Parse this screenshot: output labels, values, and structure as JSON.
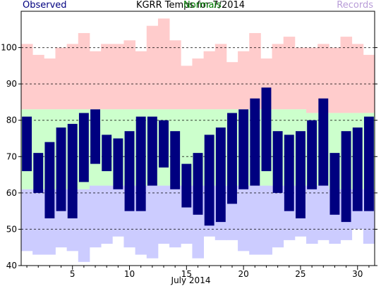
{
  "colors": {
    "observed": "#000080",
    "normals": "#008000",
    "records": "#b89cd8",
    "record_band": "#ffcccc",
    "normal_band": "#ccffcc",
    "low_record_band": "#ccccff",
    "title": "#000000"
  },
  "header": {
    "title": "KGRR Temps for 7/2014",
    "observed_label": "Observed",
    "normals_label": "Normals",
    "records_label": "Records"
  },
  "chart_data": {
    "type": "bar",
    "title": "KGRR Temps for 7/2014",
    "xlabel": "July 2014",
    "ylabel": "",
    "x": [
      1,
      2,
      3,
      4,
      5,
      6,
      7,
      8,
      9,
      10,
      11,
      12,
      13,
      14,
      15,
      16,
      17,
      18,
      19,
      20,
      21,
      22,
      23,
      24,
      25,
      26,
      27,
      28,
      29,
      30,
      31
    ],
    "xlim": [
      0.5,
      31.5
    ],
    "ylim": [
      40,
      110
    ],
    "x_ticks": [
      5,
      10,
      15,
      20,
      25,
      30
    ],
    "y_ticks": [
      40,
      50,
      60,
      70,
      80,
      90,
      100
    ],
    "grid": "dashed at y = 50, 60, 70, 80, 90, 100",
    "legend": [
      "Observed",
      "Normals",
      "Records"
    ],
    "series": [
      {
        "name": "Observed",
        "kind": "floating-bar",
        "low": [
          66,
          60,
          53,
          55,
          53,
          63,
          68,
          66,
          61,
          55,
          55,
          62,
          67,
          61,
          56,
          54,
          51,
          52,
          57,
          61,
          62,
          66,
          60,
          55,
          53,
          61,
          62,
          54,
          52,
          55,
          55
        ],
        "high": [
          81,
          71,
          74,
          78,
          79,
          82,
          83,
          76,
          75,
          77,
          81,
          81,
          80,
          77,
          68,
          71,
          76,
          78,
          82,
          83,
          86,
          89,
          77,
          76,
          77,
          80,
          86,
          71,
          77,
          78,
          81
        ]
      },
      {
        "name": "Normals",
        "kind": "band",
        "low": [
          61,
          61,
          61,
          61,
          61,
          61,
          62,
          62,
          62,
          62,
          62,
          62,
          62,
          62,
          62,
          62,
          62,
          62,
          62,
          62,
          62,
          62,
          62,
          62,
          62,
          62,
          62,
          61,
          61,
          61,
          61
        ],
        "high": [
          83,
          83,
          83,
          83,
          83,
          83,
          83,
          83,
          83,
          83,
          83,
          83,
          83,
          83,
          83,
          83,
          83,
          83,
          83,
          83,
          83,
          83,
          83,
          83,
          83,
          82,
          82,
          82,
          82,
          82,
          82
        ]
      },
      {
        "name": "Records",
        "kind": "band",
        "low": [
          44,
          43,
          43,
          45,
          44,
          41,
          45,
          46,
          48,
          45,
          43,
          42,
          46,
          45,
          46,
          42,
          48,
          47,
          47,
          44,
          43,
          43,
          45,
          47,
          48,
          46,
          47,
          46,
          47,
          50,
          46
        ],
        "high": [
          101,
          98,
          97,
          100,
          101,
          104,
          99,
          101,
          101,
          102,
          99,
          106,
          108,
          102,
          95,
          97,
          99,
          101,
          96,
          99,
          104,
          97,
          101,
          103,
          100,
          100,
          101,
          100,
          103,
          101,
          98
        ]
      }
    ]
  }
}
